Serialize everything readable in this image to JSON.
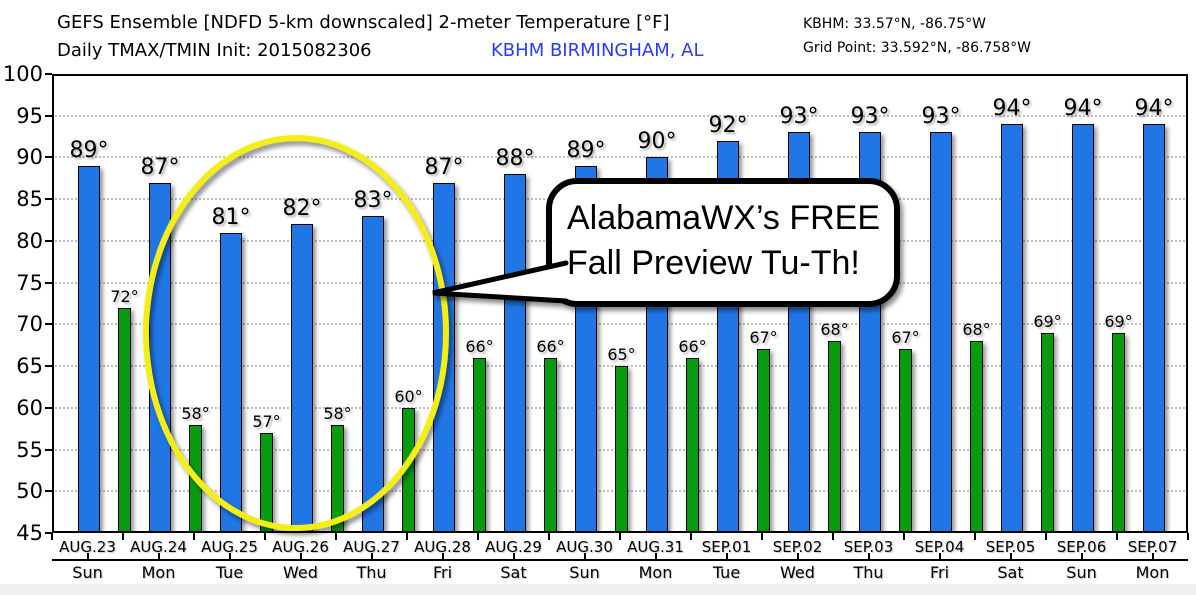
{
  "header": {
    "title": "GEFS Ensemble [NDFD 5-km downscaled] 2-meter Temperature [°F]",
    "subtitle": "Daily TMAX/TMIN Init: 2015082306",
    "station": "KBHM BIRMINGHAM, AL",
    "station_color": "#2b3bf2",
    "coords_station": "KBHM: 33.57°N, -86.75°W",
    "coords_grid_point": "Grid Point: 33.592°N, -86.758°W"
  },
  "annotation": {
    "line1": "AlabamaWX’s FREE",
    "line2": "Fall Preview Tu-Th!",
    "ellipse_color": "#f4ee16",
    "bubble_fill": "#ffffff",
    "bubble_border": "#000000"
  },
  "chart_data": {
    "type": "bar",
    "title": "GEFS Ensemble [NDFD 5-km downscaled] 2-meter Temperature [°F]",
    "subtitle": "Daily TMAX/TMIN Init: 2015082306",
    "station": "KBHM BIRMINGHAM, AL",
    "unit": "°F",
    "categories": [
      "AUG.23",
      "AUG.24",
      "AUG.25",
      "AUG.26",
      "AUG.27",
      "AUG.28",
      "AUG.29",
      "AUG.30",
      "AUG.31",
      "SEP.01",
      "SEP.02",
      "SEP.03",
      "SEP.04",
      "SEP.05",
      "SEP.06",
      "SEP.07"
    ],
    "weekdays": [
      "Sun",
      "Mon",
      "Tue",
      "Wed",
      "Thu",
      "Fri",
      "Sat",
      "Sun",
      "Mon",
      "Tue",
      "Wed",
      "Thu",
      "Fri",
      "Sat",
      "Sun",
      "Mon"
    ],
    "series": [
      {
        "name": "TMAX",
        "color": "#2176e5",
        "values": [
          89,
          87,
          81,
          82,
          83,
          87,
          88,
          89,
          90,
          92,
          93,
          93,
          93,
          94,
          94,
          94
        ]
      },
      {
        "name": "TMIN",
        "color": "#089b10",
        "values": [
          72,
          58,
          57,
          58,
          60,
          66,
          66,
          65,
          66,
          67,
          68,
          67,
          68,
          69,
          69,
          null
        ]
      }
    ],
    "ylim": [
      45,
      100
    ],
    "ytick_step": 5,
    "grid": "horizontal-dotted",
    "legend": "none"
  }
}
